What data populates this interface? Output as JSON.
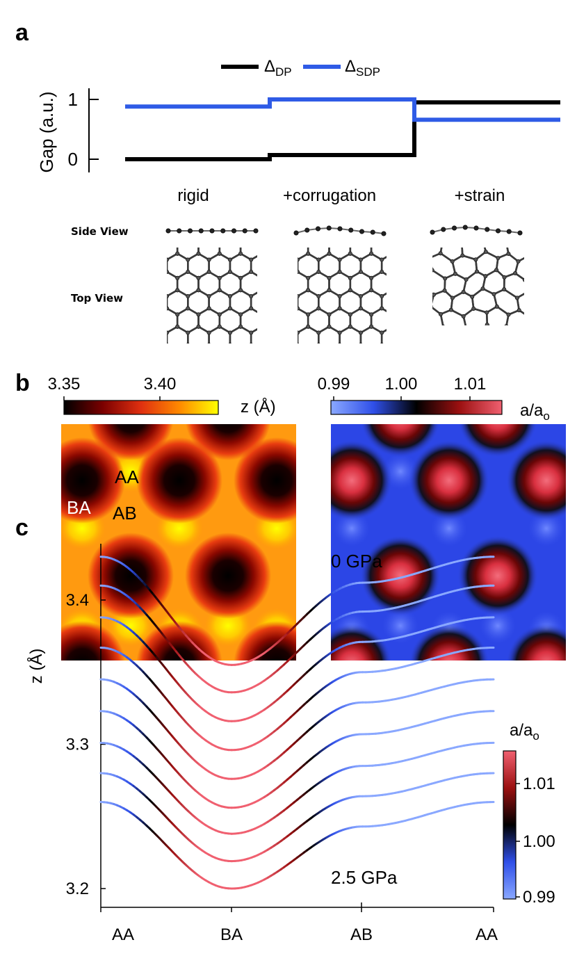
{
  "panel_a": {
    "letter": "a",
    "legend": [
      {
        "symbol": "Δ",
        "sub": "DP",
        "color": "#000000"
      },
      {
        "symbol": "Δ",
        "sub": "SDP",
        "color": "#2f5be6"
      }
    ],
    "ylabel": "Gap (a.u.)",
    "yticks": [
      "0",
      "1"
    ],
    "conditions": [
      "rigid",
      "+corrugation",
      "+strain"
    ],
    "row_labels": [
      "Side View",
      "Top View"
    ]
  },
  "panel_b": {
    "letter": "b",
    "left_colorbar": {
      "ticks": [
        "3.35",
        "3.40"
      ],
      "label": "z (Å)",
      "colors": [
        "#000000",
        "#7a0000",
        "#e03010",
        "#ff8a00",
        "#ffff00"
      ]
    },
    "right_colorbar": {
      "ticks": [
        "0.99",
        "1.00",
        "1.01"
      ],
      "label_main": "a/a",
      "label_sub": "o",
      "colors": [
        "#8aa8ff",
        "#2f4fe8",
        "#000000",
        "#9b1010",
        "#f06070"
      ]
    },
    "stacking_labels": [
      "AA",
      "BA",
      "AB"
    ]
  },
  "panel_c": {
    "letter": "c",
    "ylabel": "z (Å)",
    "yticks": [
      "3.2",
      "3.3",
      "3.4"
    ],
    "xticks": [
      "AA",
      "BA",
      "AB",
      "AA"
    ],
    "annotation_top": "0 GPa",
    "annotation_bottom": "2.5 GPa",
    "colorbar": {
      "ticks": [
        "0.99",
        "1.00",
        "1.01"
      ],
      "label_main": "a/a",
      "label_sub": "o"
    }
  },
  "chart_data": [
    {
      "type": "line",
      "panel": "a",
      "ylabel": "Gap (a.u.)",
      "categories": [
        "rigid",
        "+corrugation",
        "+strain"
      ],
      "ylim": [
        -0.2,
        1.2
      ],
      "series": [
        {
          "name": "ΔDP",
          "color": "#000000",
          "values": [
            0.0,
            0.07,
            0.95
          ]
        },
        {
          "name": "ΔSDP",
          "color": "#2f5be6",
          "values": [
            0.88,
            1.0,
            0.66
          ]
        }
      ]
    },
    {
      "type": "heatmap",
      "panel": "b-left",
      "quantity": "z (Å)",
      "range": [
        3.34,
        3.43
      ],
      "sites": {
        "AA": 3.43,
        "AB": 3.4,
        "BA": 3.35
      }
    },
    {
      "type": "heatmap",
      "panel": "b-right",
      "quantity": "a/ao",
      "range": [
        0.985,
        1.015
      ],
      "sites": {
        "AA": 0.99,
        "AB": 0.99,
        "BA": 1.012
      }
    },
    {
      "type": "line",
      "panel": "c",
      "ylabel": "z (Å)",
      "xticks": [
        "AA",
        "BA",
        "AB",
        "AA"
      ],
      "ylim": [
        3.18,
        3.45
      ],
      "colorscale_range": [
        0.99,
        1.01
      ],
      "series": [
        {
          "name": "0 GPa",
          "values": {
            "AA": 3.43,
            "BA": 3.355,
            "AB": 3.412,
            "AA_end": 3.43
          }
        },
        {
          "values": {
            "AA": 3.41,
            "BA": 3.336,
            "AB": 3.392,
            "AA_end": 3.41
          }
        },
        {
          "values": {
            "AA": 3.388,
            "BA": 3.316,
            "AB": 3.371,
            "AA_end": 3.388
          }
        },
        {
          "values": {
            "AA": 3.367,
            "BA": 3.296,
            "AB": 3.35,
            "AA_end": 3.367
          }
        },
        {
          "values": {
            "AA": 3.345,
            "BA": 3.276,
            "AB": 3.329,
            "AA_end": 3.345
          }
        },
        {
          "values": {
            "AA": 3.323,
            "BA": 3.256,
            "AB": 3.307,
            "AA_end": 3.323
          }
        },
        {
          "values": {
            "AA": 3.301,
            "BA": 3.238,
            "AB": 3.285,
            "AA_end": 3.301
          }
        },
        {
          "values": {
            "AA": 3.28,
            "BA": 3.219,
            "AB": 3.264,
            "AA_end": 3.28
          }
        },
        {
          "name": "2.5 GPa",
          "values": {
            "AA": 3.26,
            "BA": 3.2,
            "AB": 3.243,
            "AA_end": 3.26
          }
        }
      ]
    }
  ]
}
